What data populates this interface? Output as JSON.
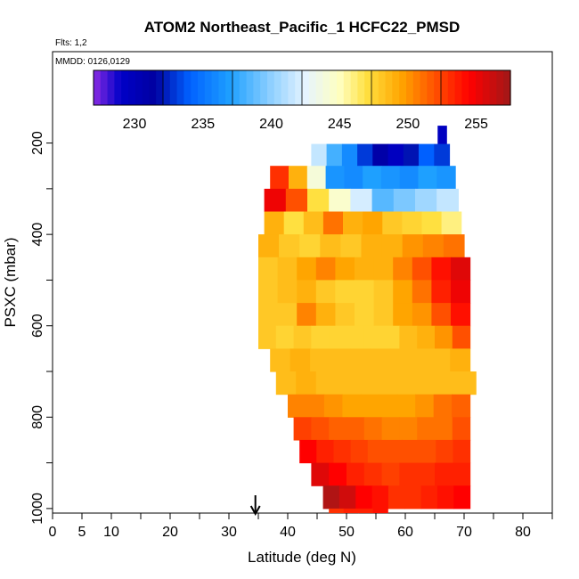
{
  "chart_data": {
    "type": "heatmap",
    "title": "ATOM2 Northeast_Pacific_1 HCFC22_PMSD",
    "flights_label": "Flts: 1,2",
    "date_label": "MMDD: 0126,0129",
    "xlabel": "Latitude (deg N)",
    "ylabel": "PSXC (mbar)",
    "xlim": [
      0,
      85
    ],
    "ylim": [
      1010,
      0
    ],
    "x_ticks": [
      0,
      5,
      10,
      20,
      30,
      40,
      50,
      60,
      70,
      80
    ],
    "y_ticks": [
      200,
      400,
      600,
      800,
      1000
    ],
    "colorbar": {
      "range": [
        227,
        257.5
      ],
      "ticks": [
        230,
        235,
        240,
        245,
        250,
        255
      ],
      "stops": [
        [
          227,
          "#8a2be2"
        ],
        [
          229,
          "#0000c8"
        ],
        [
          231.5,
          "#0000a0"
        ],
        [
          234,
          "#0060ff"
        ],
        [
          237,
          "#1ea0ff"
        ],
        [
          240,
          "#8fd0ff"
        ],
        [
          242.5,
          "#e6f4ff"
        ],
        [
          245,
          "#ffffc0"
        ],
        [
          247,
          "#ffe040"
        ],
        [
          249.5,
          "#ffa500"
        ],
        [
          252,
          "#ff5000"
        ],
        [
          254.5,
          "#ff0000"
        ],
        [
          257.5,
          "#a01818"
        ]
      ]
    },
    "marker": {
      "latitude": 34.5,
      "symbol": "arrow"
    },
    "rows": [
      {
        "p_top": 162,
        "p_bot": 202,
        "lat_min": 65.5,
        "lat_max": 67,
        "values": [
          229.5
        ]
      },
      {
        "p_top": 202,
        "p_bot": 250,
        "lat_min": 44,
        "lat_max": 67.5,
        "values": [
          241.5,
          238,
          236,
          233,
          231,
          229.5,
          232,
          234,
          233
        ]
      },
      {
        "p_top": 250,
        "p_bot": 300,
        "lat_min": 37,
        "lat_max": 68.5,
        "values": [
          253,
          249,
          244,
          236.5,
          236,
          237,
          236.5,
          236,
          237,
          236.5
        ]
      },
      {
        "p_top": 300,
        "p_bot": 350,
        "lat_min": 36,
        "lat_max": 69,
        "values": [
          255,
          252,
          247,
          244.5,
          242,
          238.5,
          239.5,
          240.5,
          241.5
        ]
      },
      {
        "p_top": 350,
        "p_bot": 400,
        "lat_min": 36,
        "lat_max": 69.5,
        "values": [
          249,
          247,
          248.5,
          251,
          249,
          249.5,
          248,
          247.5,
          247,
          246
        ]
      },
      {
        "p_top": 400,
        "p_bot": 450,
        "lat_min": 35,
        "lat_max": 70,
        "values": [
          249,
          248,
          247.5,
          248.5,
          248,
          249,
          249,
          250,
          250.5,
          251
        ]
      },
      {
        "p_top": 450,
        "p_bot": 500,
        "lat_min": 35,
        "lat_max": 71,
        "values": [
          248,
          248.5,
          249.5,
          250.5,
          249.5,
          249,
          249,
          250.5,
          252,
          254,
          255.5
        ]
      },
      {
        "p_top": 500,
        "p_bot": 550,
        "lat_min": 35,
        "lat_max": 71,
        "values": [
          248,
          248.5,
          249,
          248,
          247.5,
          247.5,
          248,
          249.5,
          251,
          253.5,
          255
        ]
      },
      {
        "p_top": 550,
        "p_bot": 600,
        "lat_min": 35,
        "lat_max": 71,
        "values": [
          248,
          248,
          250.5,
          249,
          248,
          247.5,
          248,
          249.5,
          250,
          252,
          254
        ]
      },
      {
        "p_top": 600,
        "p_bot": 650,
        "lat_min": 35,
        "lat_max": 71,
        "values": [
          248,
          247.5,
          248,
          247.5,
          247.5,
          247.5,
          247.5,
          247.5,
          248.5,
          249,
          250,
          252
        ]
      },
      {
        "p_top": 650,
        "p_bot": 700,
        "lat_min": 37,
        "lat_max": 71,
        "values": [
          248.5,
          249,
          248.5,
          248.5,
          248.5,
          248.5,
          248.5,
          248.5,
          248.5,
          249
        ]
      },
      {
        "p_top": 700,
        "p_bot": 750,
        "lat_min": 38,
        "lat_max": 72,
        "values": [
          248.5,
          249,
          248.5,
          248.5,
          248.5,
          248.5,
          248.5,
          248.5,
          248.5,
          248.5
        ]
      },
      {
        "p_top": 750,
        "p_bot": 800,
        "lat_min": 40,
        "lat_max": 71,
        "values": [
          250.5,
          250.5,
          250,
          249.5,
          249.5,
          249.5,
          249.5,
          250,
          251,
          251.5
        ]
      },
      {
        "p_top": 800,
        "p_bot": 850,
        "lat_min": 41,
        "lat_max": 71,
        "values": [
          252.5,
          252,
          251.5,
          251.5,
          251,
          250.5,
          250.5,
          251,
          251,
          252
        ]
      },
      {
        "p_top": 850,
        "p_bot": 900,
        "lat_min": 42,
        "lat_max": 71,
        "values": [
          254.5,
          253.5,
          253,
          252.5,
          252,
          252,
          252,
          252,
          252.5,
          253
        ]
      },
      {
        "p_top": 900,
        "p_bot": 950,
        "lat_min": 44,
        "lat_max": 71,
        "values": [
          255.5,
          254.5,
          253.5,
          253,
          252.5,
          253,
          253,
          253.5,
          253.5
        ]
      },
      {
        "p_top": 950,
        "p_bot": 1000,
        "lat_min": 46,
        "lat_max": 71,
        "values": [
          257,
          256,
          254.5,
          254,
          253,
          253,
          253.5,
          254,
          254.5
        ]
      },
      {
        "p_top": 1000,
        "p_bot": 1045,
        "lat_min": 47,
        "lat_max": 57,
        "values": [
          253,
          253.5,
          253.5,
          254
        ]
      }
    ]
  }
}
